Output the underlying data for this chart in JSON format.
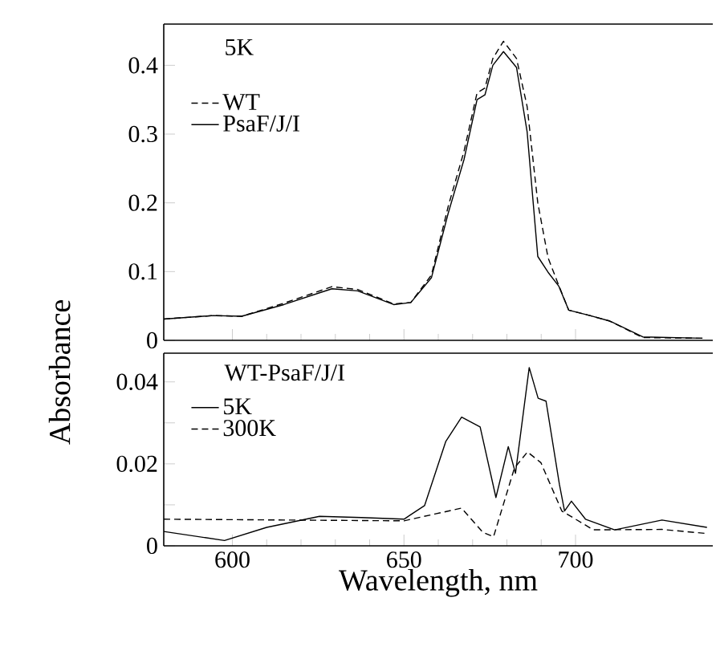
{
  "chart_data": [
    {
      "type": "line",
      "annotations": [
        "5K"
      ],
      "ylabel": "Absorbance",
      "xlim": [
        580,
        740
      ],
      "ylim": [
        0,
        0.46
      ],
      "xticks": [
        600,
        650,
        700
      ],
      "yticks": [
        0,
        0.1,
        0.2,
        0.3,
        0.4
      ],
      "tick_labels": "y",
      "legend": "top left",
      "marker": "none",
      "series": [
        {
          "name": "WT",
          "color": "#000000",
          "line_style": "dashed",
          "x": [
            580,
            594.4,
            602.7,
            615,
            629,
            636.5,
            647,
            652,
            658,
            662.9,
            667.5,
            671.3,
            673.6,
            675.9,
            679,
            682.8,
            685.9,
            689,
            692,
            695.1,
            698,
            704.2,
            710,
            719.6,
            737
          ],
          "values": [
            0.031,
            0.036,
            0.035,
            0.054,
            0.078,
            0.074,
            0.053,
            0.055,
            0.095,
            0.195,
            0.275,
            0.36,
            0.367,
            0.41,
            0.435,
            0.41,
            0.34,
            0.2,
            0.12,
            0.08,
            0.044,
            0.036,
            0.028,
            0.004,
            0.003
          ]
        },
        {
          "name": "PsaF/J/I",
          "color": "#000000",
          "line_style": "solid",
          "x": [
            580,
            594.4,
            602.7,
            615,
            629,
            636.5,
            647,
            652,
            658,
            662.9,
            667.5,
            671.3,
            673.6,
            675.9,
            679,
            682.8,
            685.9,
            689,
            692,
            695.1,
            698,
            704.2,
            710,
            719.6,
            737
          ],
          "values": [
            0.031,
            0.036,
            0.035,
            0.052,
            0.075,
            0.072,
            0.052,
            0.055,
            0.091,
            0.185,
            0.263,
            0.35,
            0.357,
            0.4,
            0.42,
            0.397,
            0.303,
            0.122,
            0.099,
            0.079,
            0.044,
            0.036,
            0.028,
            0.005,
            0.003
          ]
        }
      ]
    },
    {
      "type": "line",
      "annotations": [
        "WT-PsaF/J/I"
      ],
      "xlabel": "Wavelength, nm",
      "xlim": [
        580,
        740
      ],
      "ylim": [
        0,
        0.047
      ],
      "xticks": [
        600,
        650,
        700
      ],
      "yticks": [
        0,
        {
          "value": 0.01,
          "label": null
        },
        0.02,
        {
          "value": 0.03,
          "label": null
        },
        0.04
      ],
      "legend": "top left",
      "marker": "none",
      "series": [
        {
          "name": "5K",
          "color": "#000000",
          "line_style": "solid",
          "x": [
            580,
            597.7,
            610,
            625.4,
            637.6,
            650,
            656,
            662.2,
            666.8,
            672.2,
            676.8,
            680.4,
            682.5,
            686.5,
            689.1,
            691.4,
            695.3,
            696.8,
            698.8,
            702.9,
            711.4,
            725.2,
            738.3
          ],
          "values": [
            0.0035,
            0.0013,
            0.0045,
            0.0072,
            0.0069,
            0.0065,
            0.0098,
            0.0255,
            0.0314,
            0.029,
            0.0118,
            0.0242,
            0.0177,
            0.0435,
            0.036,
            0.0353,
            0.015,
            0.0085,
            0.0109,
            0.0065,
            0.0039,
            0.0063,
            0.0045
          ]
        },
        {
          "name": "300K",
          "color": "#000000",
          "line_style": "dashed",
          "x": [
            580,
            650,
            659.2,
            666.8,
            673,
            676.1,
            682.2,
            686,
            689.9,
            696,
            705.2,
            725.2,
            738.3
          ],
          "values": [
            0.0065,
            0.0061,
            0.0078,
            0.0092,
            0.0033,
            0.0022,
            0.019,
            0.0229,
            0.0203,
            0.0085,
            0.0039,
            0.004,
            0.003
          ]
        }
      ]
    }
  ]
}
